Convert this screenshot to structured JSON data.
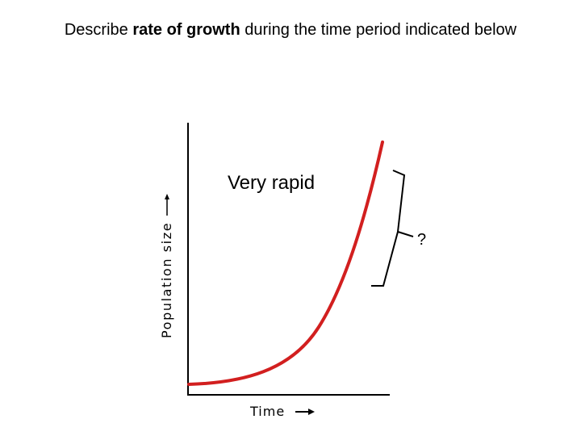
{
  "title": {
    "prefix": "Describe ",
    "emphasis": "rate of growth",
    "suffix": " during the time period indicated below"
  },
  "graph": {
    "y_axis_label": "Population size",
    "x_axis_label": "Time",
    "annotation": "Very rapid",
    "bracket_label": "?",
    "curve_color": "#d21f1f",
    "axis_color": "#000000",
    "arrow_color": "#000000"
  }
}
